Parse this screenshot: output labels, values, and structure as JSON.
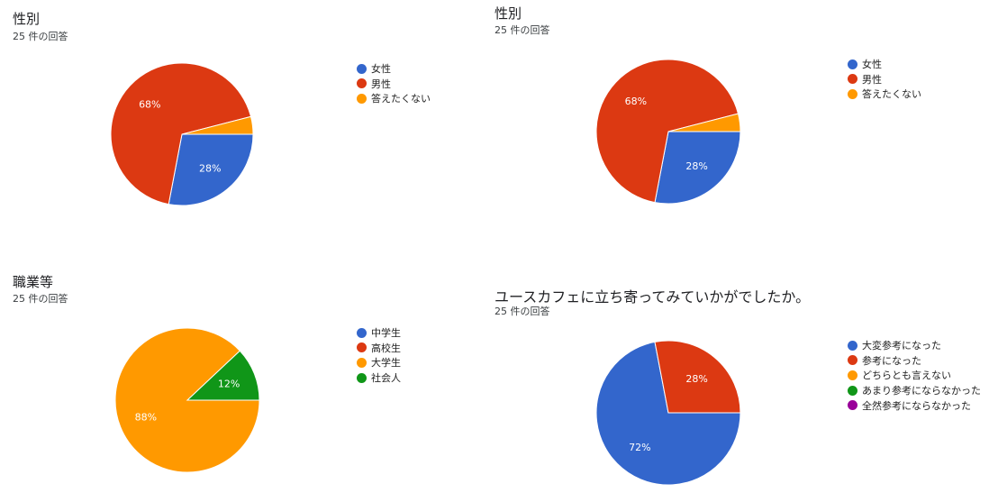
{
  "colors": [
    "#3366cc",
    "#dc3912",
    "#ff9900",
    "#109618",
    "#990099"
  ],
  "chart_data": [
    {
      "type": "pie",
      "title": "性別",
      "subtitle": "25 件の回答",
      "categories": [
        "女性",
        "男性",
        "答えたくない"
      ],
      "values": [
        28,
        68,
        4
      ],
      "data_labels": [
        "28%",
        "68%",
        ""
      ],
      "legend": "right"
    },
    {
      "type": "pie",
      "title": "性別",
      "subtitle": "25 件の回答",
      "categories": [
        "女性",
        "男性",
        "答えたくない"
      ],
      "values": [
        28,
        68,
        4
      ],
      "data_labels": [
        "28%",
        "68%",
        ""
      ],
      "legend": "right"
    },
    {
      "type": "pie",
      "title": "職業等",
      "subtitle": "25 件の回答",
      "categories": [
        "中学生",
        "高校生",
        "大学生",
        "社会人"
      ],
      "values": [
        0,
        0,
        88,
        12
      ],
      "data_labels": [
        "",
        "",
        "88%",
        "12%"
      ],
      "legend": "right"
    },
    {
      "type": "pie",
      "title": "ユースカフェに立ち寄ってみていかがでしたか。",
      "subtitle": "25 件の回答",
      "categories": [
        "大変参考になった",
        "参考になった",
        "どちらとも言えない",
        "あまり参考にならなかった",
        "全然参考にならなかった"
      ],
      "values": [
        72,
        28,
        0,
        0,
        0
      ],
      "data_labels": [
        "72%",
        "28%",
        "",
        "",
        ""
      ],
      "legend": "right"
    }
  ]
}
